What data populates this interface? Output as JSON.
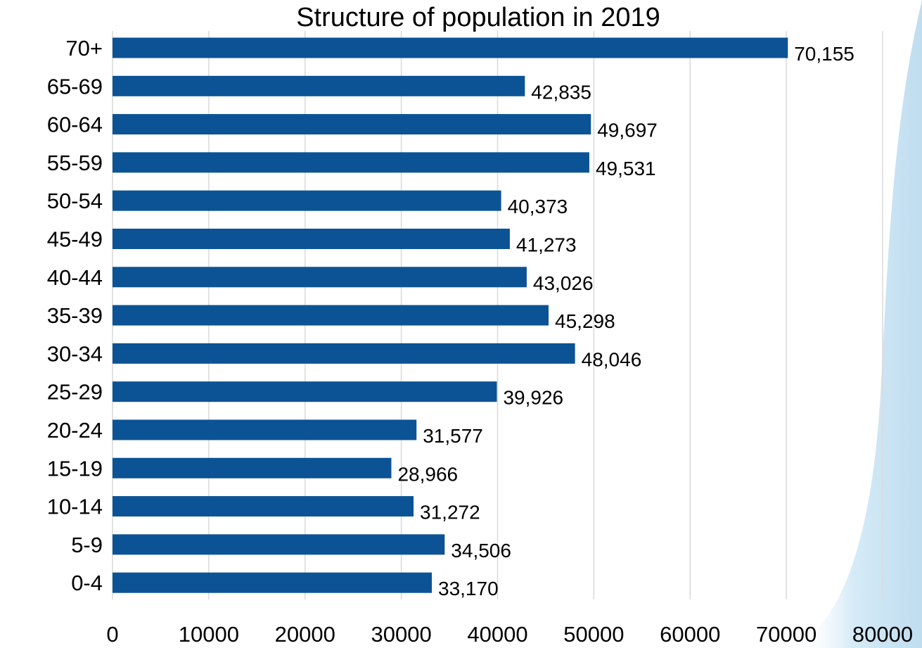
{
  "chart_data": {
    "type": "bar",
    "orientation": "horizontal",
    "title": "Structure of population in 2019",
    "xlabel": "",
    "ylabel": "",
    "categories": [
      "70+",
      "65-69",
      "60-64",
      "55-59",
      "50-54",
      "45-49",
      "40-44",
      "35-39",
      "30-34",
      "25-29",
      "20-24",
      "15-19",
      "10-14",
      "5-9",
      "0-4"
    ],
    "values": [
      70155,
      42835,
      49697,
      49531,
      40373,
      41273,
      43026,
      45298,
      48046,
      39926,
      31577,
      28966,
      31272,
      34506,
      33170
    ],
    "data_labels": [
      "70,155",
      "42,835",
      "49,697",
      "49,531",
      "40,373",
      "41,273",
      "43,026",
      "45,298",
      "48,046",
      "39,926",
      "31,577",
      "28,966",
      "31,272",
      "34,506",
      "33,170"
    ],
    "xlim": [
      0,
      80000
    ],
    "x_ticks": [
      0,
      10000,
      20000,
      30000,
      40000,
      50000,
      60000,
      70000,
      80000
    ],
    "x_tick_labels": [
      "0",
      "10000",
      "20000",
      "30000",
      "40000",
      "50000",
      "60000",
      "70000",
      "80000"
    ],
    "grid": "vertical",
    "legend": "none",
    "bar_color": "#0B5394",
    "gridline_color": "#D9D9D9",
    "background_accent_color": "#BFDDEF"
  }
}
